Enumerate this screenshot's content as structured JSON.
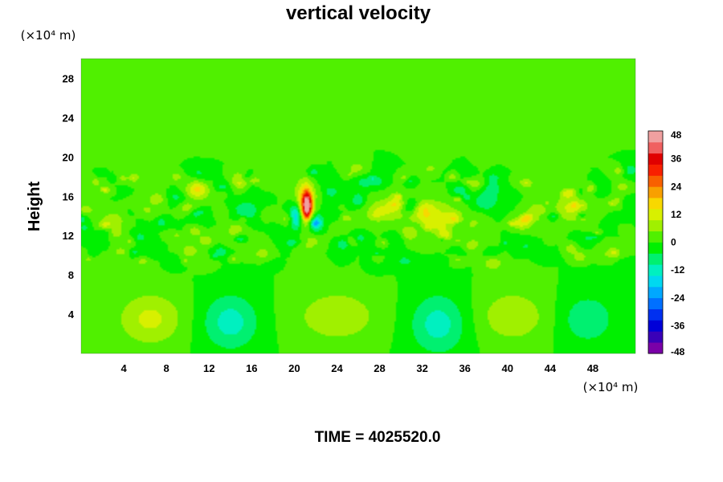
{
  "chart_data": {
    "type": "heatmap",
    "title": "vertical velocity",
    "ylabel": "Height",
    "x_unit": "(×10⁴ m)",
    "y_unit": "(×10⁴ m)",
    "xlim": [
      0,
      52
    ],
    "ylim": [
      0,
      30
    ],
    "x_ticks": [
      4,
      8,
      12,
      16,
      20,
      24,
      28,
      32,
      36,
      40,
      44,
      48
    ],
    "y_ticks": [
      4,
      8,
      12,
      16,
      20,
      24,
      28
    ],
    "colorbar": {
      "range": [
        -48,
        48
      ],
      "ticks": [
        48,
        36,
        24,
        12,
        0,
        -12,
        -24,
        -36,
        -48
      ],
      "colors": [
        "#7a00a8",
        "#3a00b8",
        "#0000d8",
        "#0030f0",
        "#0070ff",
        "#00a8ff",
        "#00d8f0",
        "#00f0c0",
        "#00f070",
        "#00f000",
        "#50f000",
        "#a0f000",
        "#d8f000",
        "#f8d800",
        "#f8a000",
        "#f86000",
        "#f82000",
        "#e00000",
        "#f06060",
        "#f0a0a0"
      ]
    },
    "background_value": 0,
    "features": [
      {
        "x": 21.2,
        "y": 15.0,
        "rx": 0.45,
        "ry": 1.4,
        "value": 38
      },
      {
        "x": 21.0,
        "y": 15.3,
        "rx": 0.9,
        "ry": 2.2,
        "value": 20
      },
      {
        "x": 20.2,
        "y": 14.0,
        "rx": 0.6,
        "ry": 1.3,
        "value": -22
      },
      {
        "x": 22.0,
        "y": 13.3,
        "rx": 0.7,
        "ry": 1.0,
        "value": -14
      },
      {
        "x": 6.5,
        "y": 3.5,
        "rx": 3.0,
        "ry": 2.6,
        "value": 11
      },
      {
        "x": 24.0,
        "y": 3.8,
        "rx": 3.8,
        "ry": 2.6,
        "value": 9
      },
      {
        "x": 40.5,
        "y": 3.8,
        "rx": 3.2,
        "ry": 2.6,
        "value": 9
      },
      {
        "x": 14.0,
        "y": 3.2,
        "rx": 2.6,
        "ry": 2.8,
        "value": -12
      },
      {
        "x": 33.5,
        "y": 3.0,
        "rx": 2.6,
        "ry": 3.0,
        "value": -12
      },
      {
        "x": 47.5,
        "y": 3.5,
        "rx": 2.5,
        "ry": 2.5,
        "value": -9
      },
      {
        "x": 33.0,
        "y": 14.0,
        "rx": 2.4,
        "ry": 1.6,
        "value": 11
      },
      {
        "x": 46.0,
        "y": 14.8,
        "rx": 1.6,
        "ry": 1.4,
        "value": 11
      },
      {
        "x": 28.5,
        "y": 14.6,
        "rx": 1.6,
        "ry": 1.2,
        "value": 10
      },
      {
        "x": 15.5,
        "y": 14.5,
        "rx": 1.2,
        "ry": 1.0,
        "value": -10
      },
      {
        "x": 38.0,
        "y": 15.5,
        "rx": 1.2,
        "ry": 1.0,
        "value": -9
      },
      {
        "x": 11.0,
        "y": 16.5,
        "rx": 1.2,
        "ry": 1.0,
        "value": 9
      },
      {
        "x": 3.0,
        "y": 13.5,
        "rx": 1.2,
        "ry": 1.0,
        "value": 8
      }
    ],
    "noise_band": {
      "y_min": 9,
      "y_max": 19,
      "amplitude": 9
    }
  },
  "footer": {
    "time_label": "TIME = 4025520.0"
  }
}
